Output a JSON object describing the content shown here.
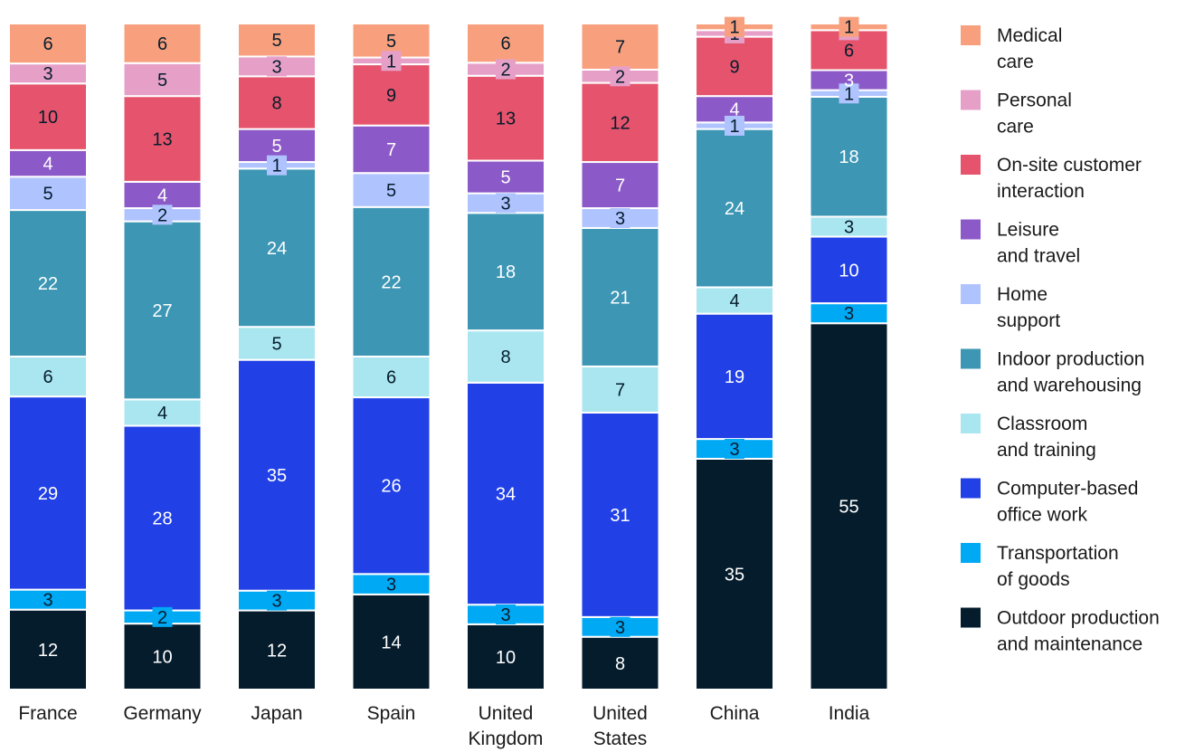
{
  "chart_data": {
    "type": "bar",
    "stacked": true,
    "title": "",
    "xlabel": "",
    "ylabel": "",
    "categories": [
      [
        "France"
      ],
      [
        "Germany"
      ],
      [
        "Japan"
      ],
      [
        "Spain"
      ],
      [
        "United",
        "Kingdom"
      ],
      [
        "United",
        "States"
      ],
      [
        "China"
      ],
      [
        "India"
      ]
    ],
    "series": [
      {
        "name": [
          "Outdoor production",
          "and maintenance"
        ],
        "color": "#051c2c",
        "label_color": "#ffffff",
        "values": [
          12,
          10,
          12,
          14,
          10,
          8,
          35,
          55
        ]
      },
      {
        "name": [
          "Transportation",
          "of goods"
        ],
        "color": "#00a9f4",
        "label_color": "#051c2c",
        "values": [
          3,
          2,
          3,
          3,
          3,
          3,
          3,
          3
        ]
      },
      {
        "name": [
          "Computer-based",
          "office work"
        ],
        "color": "#2140e6",
        "label_color": "#ffffff",
        "values": [
          29,
          28,
          35,
          26,
          34,
          31,
          19,
          10
        ]
      },
      {
        "name": [
          "Classroom",
          "and training"
        ],
        "color": "#aae6f0",
        "label_color": "#051c2c",
        "values": [
          6,
          4,
          5,
          6,
          8,
          7,
          4,
          3
        ]
      },
      {
        "name": [
          "Indoor production",
          "and warehousing"
        ],
        "color": "#3c96b4",
        "label_color": "#ffffff",
        "values": [
          22,
          27,
          24,
          22,
          18,
          21,
          24,
          18
        ]
      },
      {
        "name": [
          "Home",
          "support"
        ],
        "color": "#afc3ff",
        "label_color": "#051c2c",
        "values": [
          5,
          2,
          1,
          5,
          3,
          3,
          1,
          1
        ]
      },
      {
        "name": [
          "Leisure",
          "and travel"
        ],
        "color": "#8c5ac8",
        "label_color": "#ffffff",
        "values": [
          4,
          4,
          5,
          7,
          5,
          7,
          4,
          3
        ]
      },
      {
        "name": [
          "On-site customer",
          "interaction"
        ],
        "color": "#e5546c",
        "label_color": "#051c2c",
        "values": [
          10,
          13,
          8,
          9,
          13,
          12,
          9,
          6
        ]
      },
      {
        "name": [
          "Personal",
          "care"
        ],
        "color": "#e6a0c8",
        "label_color": "#051c2c",
        "values": [
          3,
          5,
          3,
          1,
          2,
          2,
          1,
          0
        ]
      },
      {
        "name": [
          "Medical",
          "care"
        ],
        "color": "#f8a07e",
        "label_color": "#051c2c",
        "values": [
          6,
          6,
          5,
          5,
          6,
          7,
          1,
          1
        ]
      }
    ],
    "legend_position": "right",
    "grid": false
  }
}
